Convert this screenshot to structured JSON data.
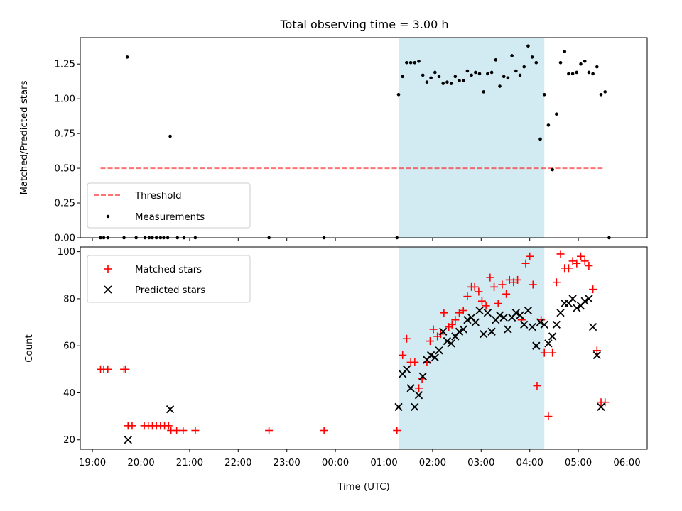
{
  "chart_data": [
    {
      "type": "scatter",
      "title": "Total observing time = 3.00 h",
      "xlabel": "",
      "ylabel": "Matched/Predicted stars",
      "xlim_minutes": [
        1125,
        1825
      ],
      "ylim": [
        0,
        1.44
      ],
      "yticks": [
        0,
        0.25,
        0.5,
        0.75,
        1.0,
        1.25
      ],
      "ytick_labels": [
        "0.00",
        "0.25",
        "0.50",
        "0.75",
        "1.00",
        "1.25"
      ],
      "shaded_span": [
        "01:18",
        "04:18"
      ],
      "shade_color": "#add8e6",
      "legend_position": "lower left",
      "threshold": {
        "name": "Threshold",
        "value": 0.5,
        "x_range": [
          "19:10",
          "05:30"
        ],
        "color": "#ff0000"
      },
      "measurements": {
        "name": "Measurements",
        "color": "#000000",
        "points": [
          [
            "19:10",
            0
          ],
          [
            "19:14",
            0
          ],
          [
            "19:19",
            0
          ],
          [
            "19:39",
            0
          ],
          [
            "19:43",
            1.3
          ],
          [
            "19:54",
            0
          ],
          [
            "20:05",
            0
          ],
          [
            "20:10",
            0
          ],
          [
            "20:14",
            0
          ],
          [
            "20:19",
            0
          ],
          [
            "20:24",
            0
          ],
          [
            "20:28",
            0
          ],
          [
            "20:33",
            0
          ],
          [
            "20:36",
            0.73
          ],
          [
            "20:45",
            0
          ],
          [
            "20:53",
            0
          ],
          [
            "21:07",
            0
          ],
          [
            "22:38",
            0
          ],
          [
            "23:46",
            0
          ],
          [
            "01:16",
            0
          ],
          [
            "01:18",
            1.03
          ],
          [
            "01:23",
            1.16
          ],
          [
            "01:28",
            1.26
          ],
          [
            "01:33",
            1.26
          ],
          [
            "01:38",
            1.26
          ],
          [
            "01:43",
            1.27
          ],
          [
            "01:48",
            1.17
          ],
          [
            "01:53",
            1.12
          ],
          [
            "01:58",
            1.15
          ],
          [
            "02:03",
            1.19
          ],
          [
            "02:08",
            1.16
          ],
          [
            "02:13",
            1.11
          ],
          [
            "02:18",
            1.12
          ],
          [
            "02:23",
            1.11
          ],
          [
            "02:28",
            1.16
          ],
          [
            "02:33",
            1.13
          ],
          [
            "02:38",
            1.13
          ],
          [
            "02:43",
            1.2
          ],
          [
            "02:48",
            1.17
          ],
          [
            "02:53",
            1.19
          ],
          [
            "02:58",
            1.18
          ],
          [
            "03:03",
            1.05
          ],
          [
            "03:08",
            1.18
          ],
          [
            "03:13",
            1.19
          ],
          [
            "03:18",
            1.28
          ],
          [
            "03:23",
            1.09
          ],
          [
            "03:28",
            1.16
          ],
          [
            "03:33",
            1.15
          ],
          [
            "03:38",
            1.31
          ],
          [
            "03:43",
            1.2
          ],
          [
            "03:48",
            1.17
          ],
          [
            "03:53",
            1.23
          ],
          [
            "03:58",
            1.38
          ],
          [
            "04:03",
            1.3
          ],
          [
            "04:08",
            1.26
          ],
          [
            "04:13",
            0.71
          ],
          [
            "04:18",
            1.03
          ],
          [
            "04:23",
            0.81
          ],
          [
            "04:28",
            0.49
          ],
          [
            "04:33",
            0.89
          ],
          [
            "04:38",
            1.26
          ],
          [
            "04:43",
            1.34
          ],
          [
            "04:48",
            1.18
          ],
          [
            "04:53",
            1.18
          ],
          [
            "04:58",
            1.19
          ],
          [
            "05:03",
            1.25
          ],
          [
            "05:08",
            1.27
          ],
          [
            "05:13",
            1.19
          ],
          [
            "05:18",
            1.18
          ],
          [
            "05:23",
            1.23
          ],
          [
            "05:28",
            1.03
          ],
          [
            "05:33",
            1.05
          ],
          [
            "05:38",
            0
          ]
        ]
      }
    },
    {
      "type": "scatter",
      "title": "",
      "xlabel": "Time (UTC)",
      "ylabel": "Count",
      "xlim_minutes": [
        1125,
        1825
      ],
      "ylim": [
        16,
        102
      ],
      "yticks": [
        20,
        40,
        60,
        80,
        100
      ],
      "ytick_labels": [
        "20",
        "40",
        "60",
        "80",
        "100"
      ],
      "xtick_labels": [
        "19:00",
        "20:00",
        "21:00",
        "22:00",
        "23:00",
        "00:00",
        "01:00",
        "02:00",
        "03:00",
        "04:00",
        "05:00",
        "06:00"
      ],
      "shaded_span": [
        "01:18",
        "04:18"
      ],
      "shade_color": "#add8e6",
      "legend_position": "upper left",
      "series": [
        {
          "name": "Matched stars",
          "marker": "+",
          "color": "#ff0000",
          "points": [
            [
              "19:10",
              50
            ],
            [
              "19:14",
              50
            ],
            [
              "19:19",
              50
            ],
            [
              "19:39",
              50
            ],
            [
              "19:41",
              50
            ],
            [
              "19:44",
              26
            ],
            [
              "19:49",
              26
            ],
            [
              "20:04",
              26
            ],
            [
              "20:09",
              26
            ],
            [
              "20:14",
              26
            ],
            [
              "20:19",
              26
            ],
            [
              "20:24",
              26
            ],
            [
              "20:29",
              26
            ],
            [
              "20:34",
              26
            ],
            [
              "20:37",
              24
            ],
            [
              "20:44",
              24
            ],
            [
              "20:52",
              24
            ],
            [
              "21:07",
              24
            ],
            [
              "22:38",
              24
            ],
            [
              "23:46",
              24
            ],
            [
              "01:16",
              24
            ],
            [
              "01:23",
              56
            ],
            [
              "01:28",
              63
            ],
            [
              "01:33",
              53
            ],
            [
              "01:38",
              53
            ],
            [
              "01:43",
              42
            ],
            [
              "01:47",
              46
            ],
            [
              "01:53",
              53
            ],
            [
              "01:57",
              62
            ],
            [
              "02:01",
              67
            ],
            [
              "02:06",
              64
            ],
            [
              "02:10",
              65
            ],
            [
              "02:14",
              74
            ],
            [
              "02:20",
              68
            ],
            [
              "02:24",
              69
            ],
            [
              "02:28",
              71
            ],
            [
              "02:33",
              74
            ],
            [
              "02:38",
              75
            ],
            [
              "02:43",
              81
            ],
            [
              "02:48",
              85
            ],
            [
              "02:52",
              85
            ],
            [
              "02:57",
              83
            ],
            [
              "03:01",
              79
            ],
            [
              "03:06",
              77
            ],
            [
              "03:11",
              89
            ],
            [
              "03:16",
              85
            ],
            [
              "03:21",
              78
            ],
            [
              "03:26",
              86
            ],
            [
              "03:31",
              82
            ],
            [
              "03:35",
              88
            ],
            [
              "03:40",
              87
            ],
            [
              "03:45",
              88
            ],
            [
              "03:50",
              71
            ],
            [
              "03:55",
              95
            ],
            [
              "04:00",
              98
            ],
            [
              "04:04",
              86
            ],
            [
              "04:09",
              43
            ],
            [
              "04:14",
              71
            ],
            [
              "04:18",
              57
            ],
            [
              "04:23",
              30
            ],
            [
              "04:28",
              57
            ],
            [
              "04:33",
              87
            ],
            [
              "04:38",
              99
            ],
            [
              "04:43",
              93
            ],
            [
              "04:48",
              93
            ],
            [
              "04:53",
              96
            ],
            [
              "04:58",
              95
            ],
            [
              "05:03",
              98
            ],
            [
              "05:08",
              96
            ],
            [
              "05:13",
              94
            ],
            [
              "05:18",
              84
            ],
            [
              "05:23",
              58
            ],
            [
              "05:28",
              36
            ],
            [
              "05:33",
              36
            ]
          ]
        },
        {
          "name": "Predicted stars",
          "marker": "x",
          "color": "#000000",
          "points": [
            [
              "19:44",
              20
            ],
            [
              "20:36",
              33
            ],
            [
              "01:18",
              34
            ],
            [
              "01:23",
              48
            ],
            [
              "01:28",
              50
            ],
            [
              "01:33",
              42
            ],
            [
              "01:38",
              34
            ],
            [
              "01:43",
              39
            ],
            [
              "01:48",
              47
            ],
            [
              "01:53",
              54
            ],
            [
              "01:58",
              56
            ],
            [
              "02:03",
              55
            ],
            [
              "02:08",
              58
            ],
            [
              "02:13",
              66
            ],
            [
              "02:18",
              62
            ],
            [
              "02:23",
              61
            ],
            [
              "02:28",
              64
            ],
            [
              "02:33",
              66
            ],
            [
              "02:38",
              67
            ],
            [
              "02:43",
              71
            ],
            [
              "02:48",
              72
            ],
            [
              "02:53",
              70
            ],
            [
              "02:58",
              75
            ],
            [
              "03:03",
              65
            ],
            [
              "03:08",
              74
            ],
            [
              "03:13",
              66
            ],
            [
              "03:18",
              71
            ],
            [
              "03:23",
              73
            ],
            [
              "03:28",
              72
            ],
            [
              "03:33",
              67
            ],
            [
              "03:38",
              72
            ],
            [
              "03:43",
              74
            ],
            [
              "03:48",
              73
            ],
            [
              "03:53",
              69
            ],
            [
              "03:58",
              75
            ],
            [
              "04:03",
              68
            ],
            [
              "04:08",
              60
            ],
            [
              "04:13",
              70
            ],
            [
              "04:18",
              69
            ],
            [
              "04:23",
              61
            ],
            [
              "04:28",
              64
            ],
            [
              "04:33",
              69
            ],
            [
              "04:38",
              74
            ],
            [
              "04:43",
              78
            ],
            [
              "04:48",
              78
            ],
            [
              "04:53",
              80
            ],
            [
              "04:58",
              76
            ],
            [
              "05:03",
              77
            ],
            [
              "05:08",
              79
            ],
            [
              "05:13",
              80
            ],
            [
              "05:18",
              68
            ],
            [
              "05:23",
              56
            ],
            [
              "05:28",
              34
            ]
          ]
        }
      ]
    }
  ]
}
